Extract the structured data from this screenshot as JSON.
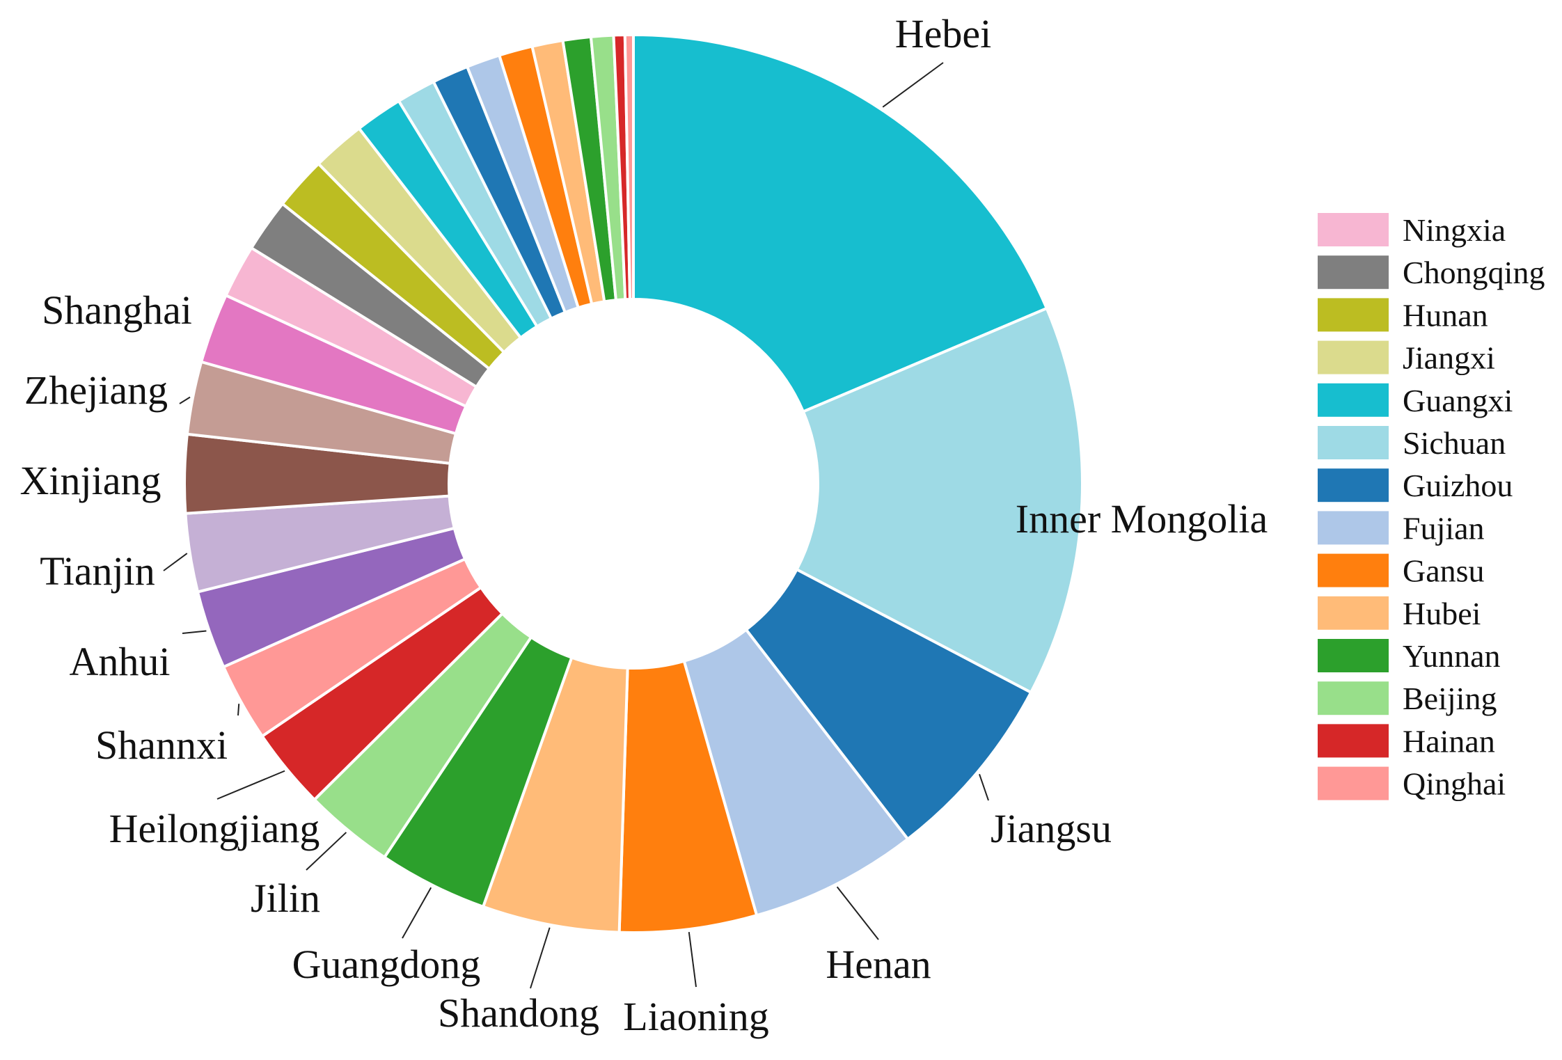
{
  "chart_data": {
    "type": "pie",
    "subtype": "donut",
    "title": "",
    "slices": [
      {
        "label": "Hebei",
        "value": 18.5,
        "color": "#17becf"
      },
      {
        "label": "Inner Mongolia",
        "value": 14.0,
        "color": "#9edae5"
      },
      {
        "label": "Jiangsu",
        "value": 6.8,
        "color": "#1f77b4"
      },
      {
        "label": "Henan",
        "value": 6.0,
        "color": "#aec7e8"
      },
      {
        "label": "Liaoning",
        "value": 4.9,
        "color": "#ff7f0e"
      },
      {
        "label": "Shandong",
        "value": 4.9,
        "color": "#ffbb78"
      },
      {
        "label": "Guangdong",
        "value": 3.9,
        "color": "#2ca02c"
      },
      {
        "label": "Jilin",
        "value": 3.2,
        "color": "#98df8a"
      },
      {
        "label": "Heilongjiang",
        "value": 2.9,
        "color": "#d62728"
      },
      {
        "label": "Shannxi",
        "value": 2.8,
        "color": "#ff9896"
      },
      {
        "label": "Anhui",
        "value": 2.8,
        "color": "#9467bd"
      },
      {
        "label": "Tianjin",
        "value": 2.8,
        "color": "#c5b0d5"
      },
      {
        "label": "Xinjiang",
        "value": 2.8,
        "color": "#8c564b"
      },
      {
        "label": "Zhejiang",
        "value": 2.6,
        "color": "#c49c94"
      },
      {
        "label": "Shanghai",
        "value": 2.5,
        "color": "#e377c2"
      },
      {
        "label": "Ningxia",
        "value": 1.9,
        "color": "#f7b6d2"
      },
      {
        "label": "Chongqing",
        "value": 1.9,
        "color": "#7f7f7f"
      },
      {
        "label": "Hunan",
        "value": 1.9,
        "color": "#bcbd22"
      },
      {
        "label": "Jiangxi",
        "value": 1.9,
        "color": "#dbdb8d"
      },
      {
        "label": "Guangxi",
        "value": 1.7,
        "color": "#17becf"
      },
      {
        "label": "Sichuan",
        "value": 1.4,
        "color": "#9edae5"
      },
      {
        "label": "Guizhou",
        "value": 1.3,
        "color": "#1f77b4"
      },
      {
        "label": "Fujian",
        "value": 1.2,
        "color": "#aec7e8"
      },
      {
        "label": "Gansu",
        "value": 1.2,
        "color": "#ff7f0e"
      },
      {
        "label": "Hubei",
        "value": 1.1,
        "color": "#ffbb78"
      },
      {
        "label": "Yunnan",
        "value": 1.0,
        "color": "#2ca02c"
      },
      {
        "label": "Beijing",
        "value": 0.8,
        "color": "#98df8a"
      },
      {
        "label": "Hainan",
        "value": 0.4,
        "color": "#d62728"
      },
      {
        "label": "Qinghai",
        "value": 0.3,
        "color": "#ff9896"
      }
    ],
    "legend": {
      "placement": "right",
      "items": [
        {
          "label": "Ningxia",
          "color": "#f7b6d2"
        },
        {
          "label": "Chongqing",
          "color": "#7f7f7f"
        },
        {
          "label": "Hunan",
          "color": "#bcbd22"
        },
        {
          "label": "Jiangxi",
          "color": "#dbdb8d"
        },
        {
          "label": "Guangxi",
          "color": "#17becf"
        },
        {
          "label": "Sichuan",
          "color": "#9edae5"
        },
        {
          "label": "Guizhou",
          "color": "#1f77b4"
        },
        {
          "label": "Fujian",
          "color": "#aec7e8"
        },
        {
          "label": "Gansu",
          "color": "#ff7f0e"
        },
        {
          "label": "Hubei",
          "color": "#ffbb78"
        },
        {
          "label": "Yunnan",
          "color": "#2ca02c"
        },
        {
          "label": "Beijing",
          "color": "#98df8a"
        },
        {
          "label": "Hainan",
          "color": "#d62728"
        },
        {
          "label": "Qinghai",
          "color": "#ff9896"
        }
      ]
    }
  }
}
